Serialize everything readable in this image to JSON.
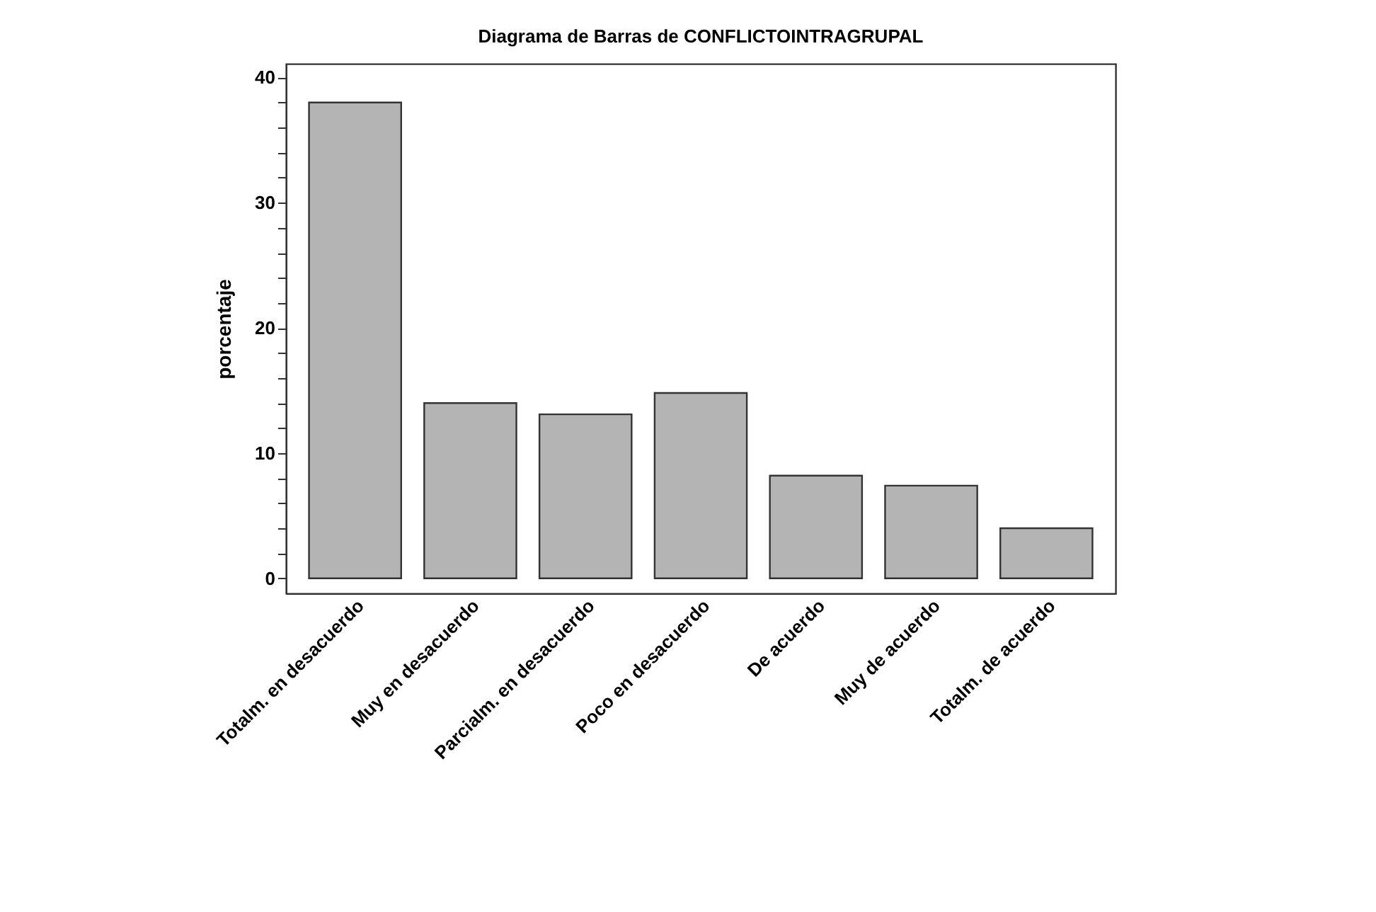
{
  "chart_data": {
    "type": "bar",
    "title": "Diagrama de Barras de CONFLICTOINTRAGRUPAL",
    "ylabel": "porcentaje",
    "categories": [
      "Totalm. en desacuerdo",
      "Muy en desacuerdo",
      "Parcialm. en desacuerdo",
      "Poco en desacuerdo",
      "De acuerdo",
      "Muy de acuerdo",
      "Totalm. de acuerdo"
    ],
    "values": [
      38,
      14.0,
      13.1,
      14.8,
      8.2,
      7.4,
      4.0
    ],
    "color": "#b4b4b4",
    "ylim": [
      -1.2,
      41.1
    ],
    "yticks": [
      0,
      {
        "value": 2,
        "label": null
      },
      {
        "value": 4,
        "label": null
      },
      {
        "value": 6,
        "label": null
      },
      {
        "value": 8,
        "label": null
      },
      10,
      {
        "value": 12,
        "label": null
      },
      {
        "value": 14,
        "label": null
      },
      {
        "value": 16,
        "label": null
      },
      {
        "value": 18,
        "label": null
      },
      20,
      {
        "value": 22,
        "label": null
      },
      {
        "value": 24,
        "label": null
      },
      {
        "value": 26,
        "label": null
      },
      {
        "value": 28,
        "label": null
      },
      30,
      {
        "value": 32,
        "label": null
      },
      {
        "value": 34,
        "label": null
      },
      {
        "value": 36,
        "label": null
      },
      {
        "value": 38,
        "label": null
      },
      40
    ],
    "grid": false
  }
}
